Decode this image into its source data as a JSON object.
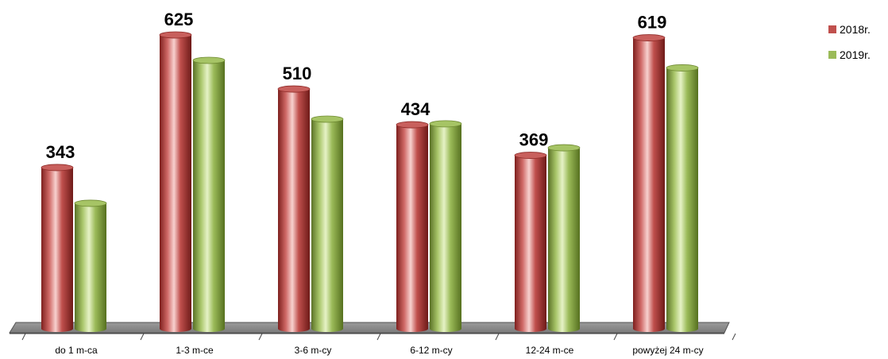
{
  "chart_data": {
    "type": "bar",
    "categories": [
      "do 1 m-ca",
      "1-3 m-ce",
      "3-6 m-cy",
      "6-12 m-cy",
      "12-24 m-ce",
      "powyżej 24 m-cy"
    ],
    "series": [
      {
        "name": "2018r.",
        "color": "#c0504d",
        "values": [
          343,
          625,
          510,
          434,
          369,
          619
        ],
        "labels": [
          "343",
          "625",
          "510",
          "434",
          "369",
          "619"
        ]
      },
      {
        "name": "2019r.",
        "color": "#9bbb59",
        "values": [
          267,
          571,
          446,
          436,
          385,
          555
        ]
      }
    ],
    "ylim": [
      0,
      700
    ],
    "grid": false,
    "legend_position": "top-right",
    "style": "3d-cylinder"
  }
}
